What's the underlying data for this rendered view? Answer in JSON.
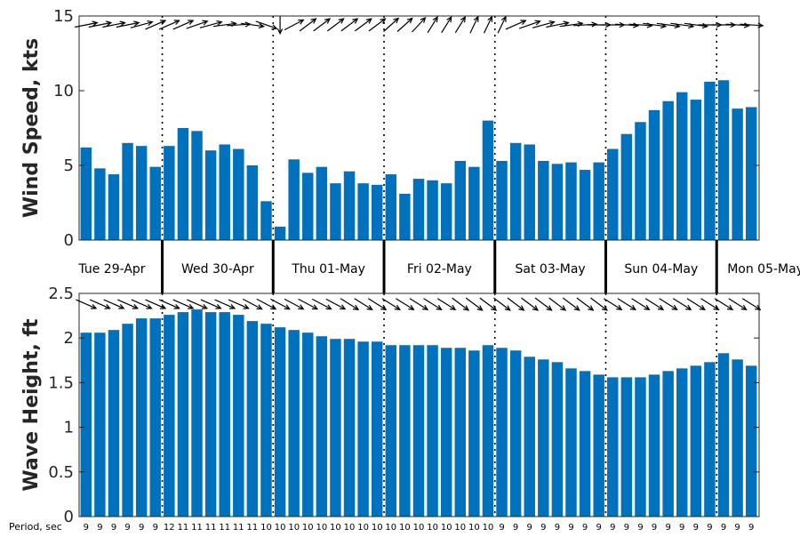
{
  "colors": {
    "bar": "#0072BD",
    "axis": "#262626",
    "arrow": "#000000",
    "divider": "#000000"
  },
  "days": [
    "Tue 29-Apr",
    "Wed 30-Apr",
    "Thu 01-May",
    "Fri 02-May",
    "Sat 03-May",
    "Sun 04-May",
    "Mon 05-May"
  ],
  "period_title": "Period, sec",
  "chart_data": [
    {
      "type": "bar",
      "name": "wind",
      "ylabel": "Wind Speed, kts",
      "ylim": [
        0,
        15
      ],
      "yticks": [
        0,
        5,
        10,
        15
      ],
      "grid": false,
      "values": [
        6.2,
        4.8,
        4.4,
        6.5,
        6.3,
        4.9,
        6.3,
        7.5,
        7.3,
        6.0,
        6.4,
        6.1,
        5.0,
        2.6,
        0.9,
        5.4,
        4.5,
        4.9,
        3.8,
        4.6,
        3.8,
        3.7,
        4.4,
        3.1,
        4.1,
        4.0,
        3.8,
        5.3,
        4.9,
        8.0,
        5.3,
        6.5,
        6.4,
        5.3,
        5.1,
        5.2,
        4.7,
        5.2,
        6.1,
        7.1,
        7.9,
        8.7,
        9.3,
        9.9,
        9.4,
        10.6,
        10.7,
        8.8,
        8.9
      ],
      "direction_arrows_deg": [
        75,
        75,
        75,
        75,
        70,
        60,
        60,
        60,
        65,
        70,
        80,
        85,
        100,
        115,
        180,
        55,
        45,
        45,
        45,
        45,
        45,
        45,
        40,
        40,
        35,
        25,
        25,
        25,
        20,
        20,
        20,
        60,
        65,
        70,
        75,
        80,
        85,
        90,
        90,
        95,
        95,
        100,
        100,
        100,
        100,
        90,
        90,
        95,
        95
      ]
    },
    {
      "type": "bar",
      "name": "wave",
      "ylabel": "Wave Height, ft",
      "ylim": [
        0,
        2.5
      ],
      "yticks": [
        0,
        0.5,
        1,
        1.5,
        2,
        2.5
      ],
      "grid": false,
      "values": [
        2.06,
        2.06,
        2.09,
        2.16,
        2.22,
        2.22,
        2.26,
        2.29,
        2.32,
        2.29,
        2.29,
        2.26,
        2.19,
        2.16,
        2.12,
        2.09,
        2.06,
        2.02,
        1.99,
        1.99,
        1.96,
        1.96,
        1.92,
        1.92,
        1.92,
        1.92,
        1.89,
        1.89,
        1.86,
        1.92,
        1.89,
        1.86,
        1.79,
        1.76,
        1.73,
        1.66,
        1.63,
        1.59,
        1.56,
        1.56,
        1.56,
        1.59,
        1.63,
        1.66,
        1.69,
        1.73,
        1.83,
        1.76,
        1.69
      ],
      "direction_arrows_deg": [
        120,
        120,
        120,
        120,
        120,
        120,
        120,
        120,
        120,
        120,
        120,
        120,
        125,
        125,
        125,
        125,
        125,
        125,
        125,
        130,
        130,
        130,
        130,
        130,
        130,
        130,
        130,
        135,
        135,
        135,
        135,
        135,
        135,
        135,
        135,
        135,
        135,
        135,
        130,
        130,
        130,
        130,
        130,
        130,
        130,
        130,
        130,
        130,
        130
      ],
      "periods_sec": [
        9,
        9,
        9,
        9,
        9,
        9,
        12,
        11,
        11,
        11,
        11,
        11,
        11,
        10,
        10,
        10,
        10,
        10,
        10,
        10,
        10,
        10,
        10,
        10,
        10,
        10,
        10,
        10,
        10,
        10,
        9,
        9,
        9,
        9,
        9,
        9,
        9,
        9,
        9,
        9,
        9,
        9,
        9,
        9,
        9,
        9,
        9,
        9,
        9
      ]
    }
  ]
}
